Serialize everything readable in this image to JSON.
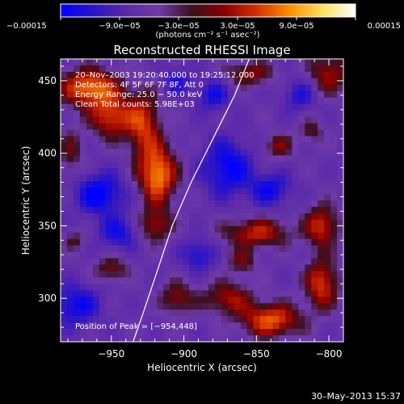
{
  "chart_data": {
    "type": "heatmap",
    "title": "Reconstructed RHESSI Image",
    "xlabel": "Heliocentric X (arcsec)",
    "ylabel": "Heliocentric Y (arcsec)",
    "xlim": [
      -985,
      -790
    ],
    "ylim": [
      270,
      465
    ],
    "x_ticks": [
      -950,
      -900,
      -850,
      -800
    ],
    "y_ticks": [
      300,
      350,
      400,
      450
    ],
    "x_tick_labels": [
      "−950",
      "−900",
      "−850",
      "−800"
    ],
    "y_tick_labels": [
      "300",
      "350",
      "400",
      "450"
    ],
    "colorbar": {
      "range": [
        -0.00015,
        0.00015
      ],
      "tick_labels": [
        "−0.00015",
        "−9.0e−05",
        "−3.0e−05",
        "3.0e−05",
        "9.0e−05",
        "0.00015"
      ],
      "units_label": "(photons cm⁻² s⁻¹ asec⁻²)",
      "colors": [
        "#0000ff",
        "#2a14c8",
        "#5a2aa6",
        "#6f3aa8",
        "#3a1020",
        "#8a0000",
        "#d43000",
        "#ff9000",
        "#ffe060",
        "#ffffff"
      ]
    },
    "annotations": [
      "20–Nov–2003 19:20:40.000 to 19:25:12.000",
      "Detectors: 4F 5F 6F 7F 8F, Att 0",
      "Energy Range: 25.0 − 50.0 keV",
      "Clean     Total counts: 5.98E+03",
      "Position of Peak = [−954,448]"
    ],
    "limb": [
      [
        -855,
        465
      ],
      [
        -865,
        440
      ],
      [
        -880,
        410
      ],
      [
        -895,
        380
      ],
      [
        -908,
        350
      ],
      [
        -918,
        320
      ],
      [
        -928,
        290
      ],
      [
        -935,
        270
      ]
    ],
    "sources": [
      {
        "x": -965,
        "y": 445,
        "amp": 1.0,
        "sx": 14,
        "sy": 9
      },
      {
        "x": -950,
        "y": 425,
        "amp": 0.8,
        "sx": 10,
        "sy": 10
      },
      {
        "x": -928,
        "y": 420,
        "amp": 0.75,
        "sx": 8,
        "sy": 16
      },
      {
        "x": -918,
        "y": 385,
        "amp": 1.05,
        "sx": 9,
        "sy": 14
      },
      {
        "x": -920,
        "y": 350,
        "amp": 0.6,
        "sx": 8,
        "sy": 8
      },
      {
        "x": -978,
        "y": 400,
        "amp": 0.4,
        "sx": 6,
        "sy": 12
      },
      {
        "x": -855,
        "y": 455,
        "amp": 0.55,
        "sx": 12,
        "sy": 6
      },
      {
        "x": -800,
        "y": 455,
        "amp": 0.6,
        "sx": 10,
        "sy": 10
      },
      {
        "x": -835,
        "y": 405,
        "amp": 0.5,
        "sx": 7,
        "sy": 6
      },
      {
        "x": -812,
        "y": 415,
        "amp": 0.4,
        "sx": 6,
        "sy": 6
      },
      {
        "x": -850,
        "y": 345,
        "amp": 0.7,
        "sx": 16,
        "sy": 7
      },
      {
        "x": -805,
        "y": 350,
        "amp": 0.75,
        "sx": 8,
        "sy": 10
      },
      {
        "x": -805,
        "y": 310,
        "amp": 0.8,
        "sx": 8,
        "sy": 12
      },
      {
        "x": -870,
        "y": 300,
        "amp": 0.6,
        "sx": 12,
        "sy": 8
      },
      {
        "x": -840,
        "y": 285,
        "amp": 0.9,
        "sx": 14,
        "sy": 8
      },
      {
        "x": -905,
        "y": 300,
        "amp": 0.55,
        "sx": 8,
        "sy": 8
      },
      {
        "x": -950,
        "y": 320,
        "amp": 0.5,
        "sx": 8,
        "sy": 6
      },
      {
        "x": -975,
        "y": 340,
        "amp": 0.35,
        "sx": 6,
        "sy": 5
      },
      {
        "x": -860,
        "y": 325,
        "amp": 0.45,
        "sx": 7,
        "sy": 6
      },
      {
        "x": -958,
        "y": 372,
        "amp": -0.7,
        "sx": 12,
        "sy": 10
      },
      {
        "x": -945,
        "y": 345,
        "amp": -0.5,
        "sx": 10,
        "sy": 8
      },
      {
        "x": -870,
        "y": 390,
        "amp": -0.65,
        "sx": 12,
        "sy": 14
      },
      {
        "x": -840,
        "y": 375,
        "amp": -0.55,
        "sx": 10,
        "sy": 8
      },
      {
        "x": -880,
        "y": 440,
        "amp": -0.5,
        "sx": 8,
        "sy": 8
      },
      {
        "x": -975,
        "y": 295,
        "amp": -0.6,
        "sx": 12,
        "sy": 10
      },
      {
        "x": -890,
        "y": 330,
        "amp": -0.5,
        "sx": 8,
        "sy": 8
      },
      {
        "x": -820,
        "y": 440,
        "amp": -0.45,
        "sx": 8,
        "sy": 8
      },
      {
        "x": -905,
        "y": 450,
        "amp": -0.4,
        "sx": 7,
        "sy": 7
      }
    ]
  },
  "footer": {
    "timestamp": "30–May–2013 15:37"
  }
}
